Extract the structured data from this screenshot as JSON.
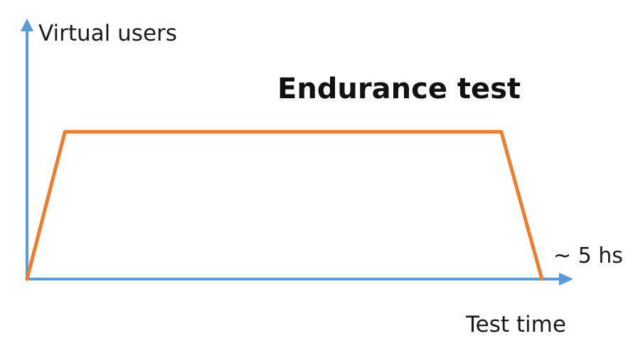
{
  "chart_data": {
    "type": "line",
    "title": "Endurance test",
    "ylabel": "Virtual users",
    "xlabel": "Test time",
    "annotations": [
      {
        "text": "~ 5 hs",
        "target": "x-axis end"
      }
    ],
    "series": [
      {
        "x": [
          0,
          0.07,
          0.875,
          0.95
        ],
        "y": [
          0,
          1,
          1,
          0
        ]
      }
    ],
    "xlim": [
      0,
      1
    ],
    "ylim": [
      0,
      1.75
    ],
    "grid": false,
    "colors": {
      "axis": "#5b9bd5",
      "series": "#ed7d31"
    }
  }
}
